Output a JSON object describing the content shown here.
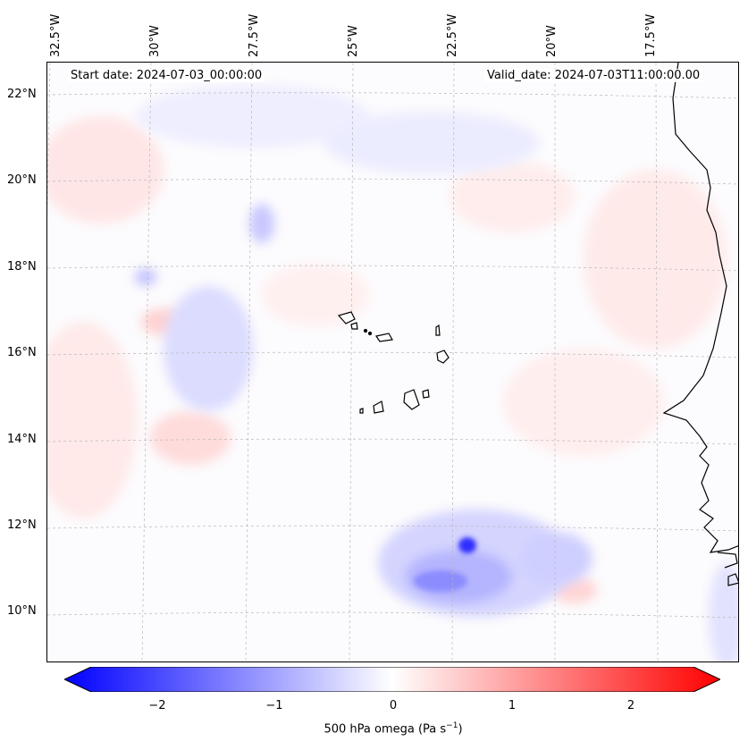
{
  "header": {
    "start_date": "Start date: 2024-07-03_00:00:00",
    "valid_date": "Valid_date: 2024-07-03T11:00:00.00"
  },
  "axes": {
    "longitude_labels": [
      "32.5°W",
      "30°W",
      "27.5°W",
      "25°W",
      "22.5°W",
      "20°W",
      "17.5°W"
    ],
    "latitude_labels": [
      "22°N",
      "20°N",
      "18°N",
      "16°N",
      "14°N",
      "12°N",
      "10°N"
    ]
  },
  "colorbar": {
    "ticks": [
      "−2",
      "−1",
      "0",
      "1",
      "2"
    ],
    "label": "500 hPa omega (Pa s",
    "label_exp": "−1",
    "label_close": ")",
    "min": -2.6,
    "max": 2.6,
    "colors": {
      "negative": "#0000ff",
      "zero": "#ffffff",
      "positive": "#ff0000"
    }
  },
  "map": {
    "field": "500 hPa omega",
    "features": [
      "Cape Verde islands",
      "West African coastline"
    ]
  }
}
